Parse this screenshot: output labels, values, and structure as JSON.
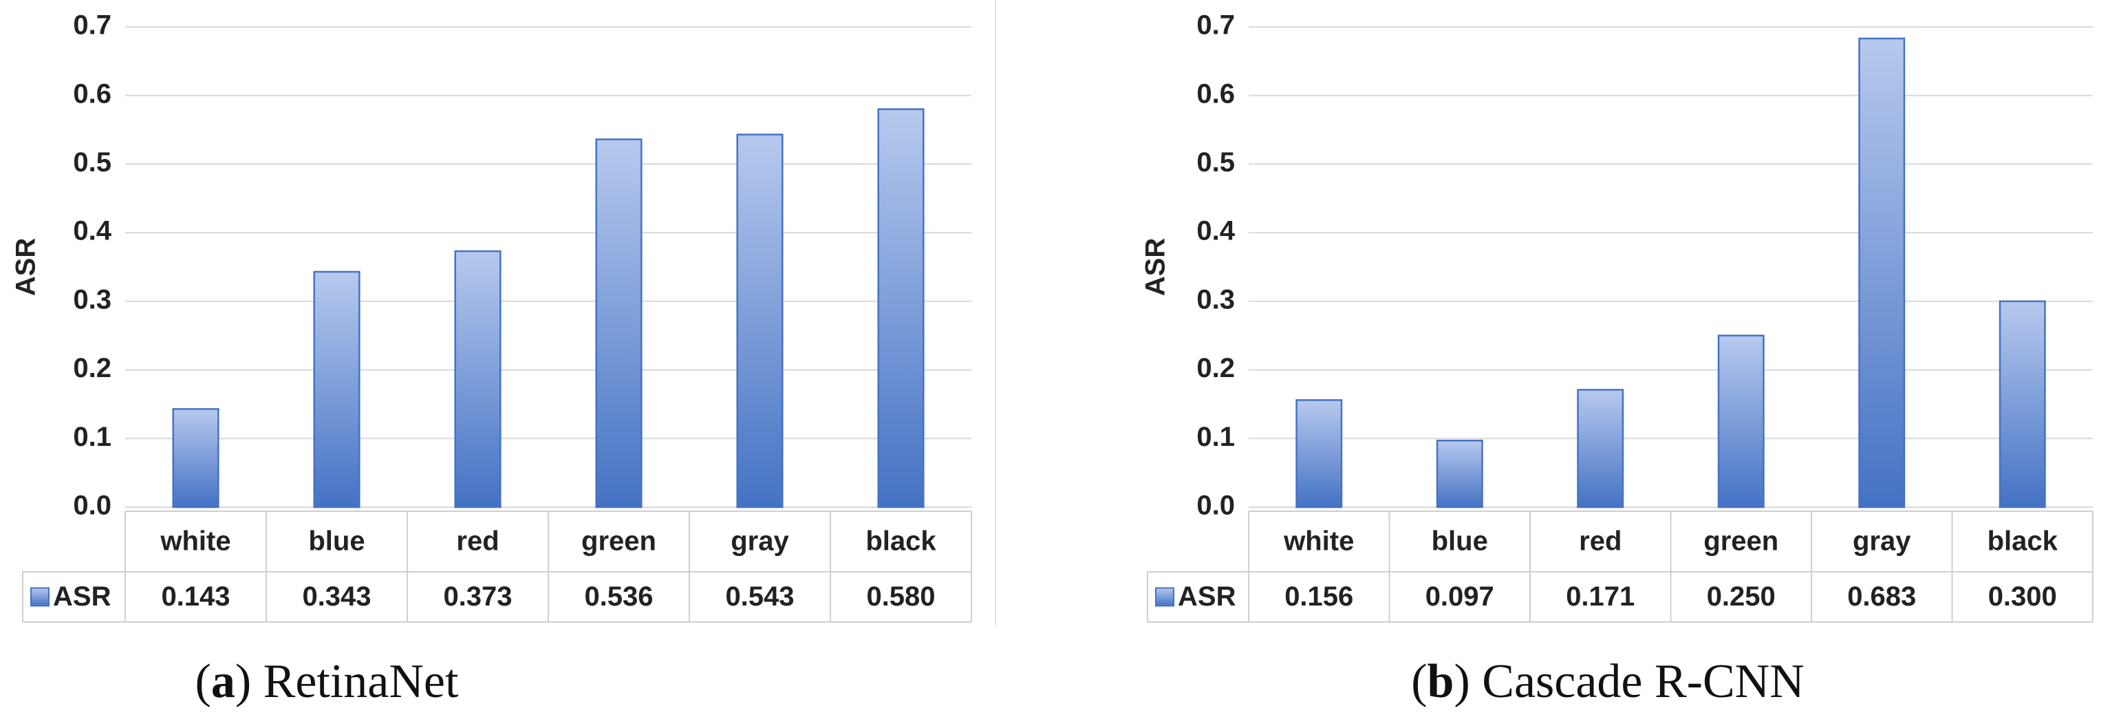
{
  "chart_data": [
    {
      "type": "bar",
      "caption_parts": [
        "(",
        "a",
        ") RetinaNet"
      ],
      "ylabel": "ASR",
      "categories": [
        "white",
        "blue",
        "red",
        "green",
        "gray",
        "black"
      ],
      "series": [
        {
          "name": "ASR",
          "color": "#4472c4",
          "values": [
            0.143,
            0.343,
            0.373,
            0.536,
            0.543,
            0.58
          ],
          "value_labels": [
            "0.143",
            "0.343",
            "0.373",
            "0.536",
            "0.543",
            "0.580"
          ]
        }
      ],
      "ylim": [
        0,
        0.7
      ],
      "yticks": [
        {
          "value": 0,
          "label": "0.0"
        },
        0.1,
        0.2,
        0.3,
        0.4,
        0.5,
        0.6,
        0.7
      ],
      "grid": true
    },
    {
      "type": "bar",
      "caption_parts": [
        "(",
        "b",
        ") Cascade R-CNN"
      ],
      "ylabel": "ASR",
      "categories": [
        "white",
        "blue",
        "red",
        "green",
        "gray",
        "black"
      ],
      "series": [
        {
          "name": "ASR",
          "color": "#4472c4",
          "values": [
            0.156,
            0.097,
            0.171,
            0.25,
            0.683,
            0.3
          ],
          "value_labels": [
            "0.156",
            "0.097",
            "0.171",
            "0.250",
            "0.683",
            "0.300"
          ]
        }
      ],
      "ylim": [
        0,
        0.7
      ],
      "yticks": [
        {
          "value": 0,
          "label": "0.0"
        },
        0.1,
        0.2,
        0.3,
        0.4,
        0.5,
        0.6,
        0.7
      ],
      "grid": true
    }
  ]
}
